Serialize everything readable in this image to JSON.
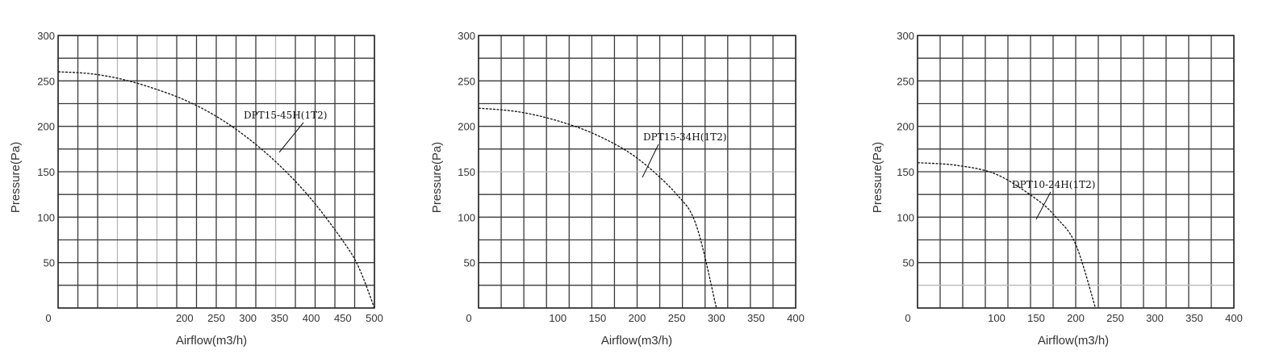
{
  "chart_data": [
    {
      "type": "line",
      "title": "",
      "xlabel": "Airflow(m3/h)",
      "ylabel": "Pressure(Pa)",
      "xlim": [
        0,
        500
      ],
      "ylim": [
        0,
        300
      ],
      "x_tick_labels": [
        "0",
        "200",
        "250",
        "300",
        "350",
        "400",
        "450",
        "500"
      ],
      "y_tick_labels": [
        "300",
        "250",
        "200",
        "150",
        "100",
        "50"
      ],
      "grid": true,
      "series": [
        {
          "name": "DPT15-45H(1T2)",
          "x": [
            0,
            50,
            100,
            150,
            200,
            250,
            300,
            350,
            400,
            450,
            475,
            500
          ],
          "y": [
            260,
            258,
            252,
            242,
            229,
            211,
            187,
            157,
            120,
            74,
            45,
            0
          ]
        }
      ]
    },
    {
      "type": "line",
      "title": "",
      "xlabel": "Airflow(m3/h)",
      "ylabel": "Pressure(Pa)",
      "xlim": [
        0,
        400
      ],
      "ylim": [
        0,
        300
      ],
      "x_tick_labels": [
        "0",
        "100",
        "150",
        "200",
        "250",
        "300",
        "350",
        "400"
      ],
      "y_tick_labels": [
        "300",
        "250",
        "200",
        "150",
        "100",
        "50"
      ],
      "grid": true,
      "series": [
        {
          "name": "DPT15-34H(1T2)",
          "x": [
            0,
            50,
            100,
            150,
            200,
            250,
            275,
            300
          ],
          "y": [
            220,
            216,
            206,
            190,
            165,
            125,
            90,
            0
          ]
        }
      ]
    },
    {
      "type": "line",
      "title": "",
      "xlabel": "Airflow(m3/h)",
      "ylabel": "Pressure(Pa)",
      "xlim": [
        0,
        400
      ],
      "ylim": [
        0,
        300
      ],
      "x_tick_labels": [
        "0",
        "100",
        "150",
        "200",
        "250",
        "300",
        "350",
        "400"
      ],
      "y_tick_labels": [
        "300",
        "250",
        "200",
        "150",
        "100",
        "50"
      ],
      "grid": true,
      "series": [
        {
          "name": "DPT10-24H(1T2)",
          "x": [
            0,
            50,
            100,
            150,
            175,
            200,
            225
          ],
          "y": [
            160,
            157,
            147,
            120,
            100,
            70,
            0
          ]
        }
      ]
    }
  ]
}
